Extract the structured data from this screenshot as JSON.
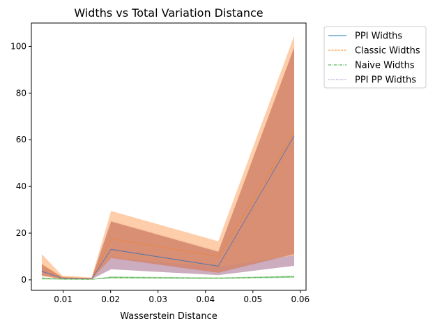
{
  "chart_data": {
    "type": "line",
    "title": "Widths vs Total Variation Distance",
    "xlabel": "Wasserstein Distance",
    "ylabel": "",
    "xlim": [
      0.0033,
      0.0612
    ],
    "ylim": [
      -4.5,
      110
    ],
    "xticks": [
      0.01,
      0.02,
      0.03,
      0.04,
      0.05,
      0.06
    ],
    "xtick_labels": [
      "0.01",
      "0.02",
      "0.03",
      "0.04",
      "0.05",
      "0.06"
    ],
    "yticks": [
      0,
      20,
      40,
      60,
      80,
      100
    ],
    "ytick_labels": [
      "0",
      "20",
      "40",
      "60",
      "80",
      "100"
    ],
    "grid": false,
    "legend_position": "outside-top-right",
    "x": [
      0.0055,
      0.0098,
      0.016,
      0.0201,
      0.0427,
      0.0587
    ],
    "series": [
      {
        "name": "PPI Widths",
        "color": "#1f77b4",
        "linestyle": "solid",
        "values": [
          3.6,
          0.7,
          0.4,
          13.0,
          5.8,
          61.7
        ],
        "band_lower": [
          1.8,
          0.4,
          0.2,
          4.5,
          2.0,
          6.0
        ],
        "band_upper": [
          7.0,
          1.2,
          0.7,
          25.5,
          12.5,
          100.0
        ],
        "band_color": "#c7a3b8"
      },
      {
        "name": "Classic Widths",
        "color": "#ff7f0e",
        "linestyle": "dashed",
        "values": [
          6.5,
          1.0,
          0.6,
          17.5,
          10.0,
          63.5
        ],
        "band_lower": [
          1.5,
          0.3,
          0.2,
          9.5,
          5.5,
          10.5
        ],
        "band_upper": [
          11.0,
          1.8,
          1.0,
          29.5,
          16.5,
          104.5
        ],
        "band_color": "#fdc9a0"
      },
      {
        "name": "Naive Widths",
        "color": "#2ca02c",
        "linestyle": "dashdot",
        "values": [
          0.6,
          0.3,
          0.2,
          1.0,
          0.7,
          1.3
        ],
        "band_lower": [
          0.2,
          0.1,
          0.1,
          0.6,
          0.4,
          0.9
        ],
        "band_upper": [
          1.0,
          0.5,
          0.3,
          1.4,
          1.0,
          1.7
        ],
        "band_color": "#98d08f"
      },
      {
        "name": "PPI PP Widths",
        "color": "#9467bd",
        "linestyle": "dotted",
        "values": [
          3.8,
          0.7,
          0.4,
          13.2,
          6.0,
          61.5
        ],
        "band_lower": [
          1.9,
          0.4,
          0.2,
          9.3,
          3.0,
          11.0
        ],
        "band_upper": [
          6.5,
          1.1,
          0.6,
          25.0,
          12.0,
          99.5
        ],
        "band_color": "#d2856c"
      }
    ]
  }
}
